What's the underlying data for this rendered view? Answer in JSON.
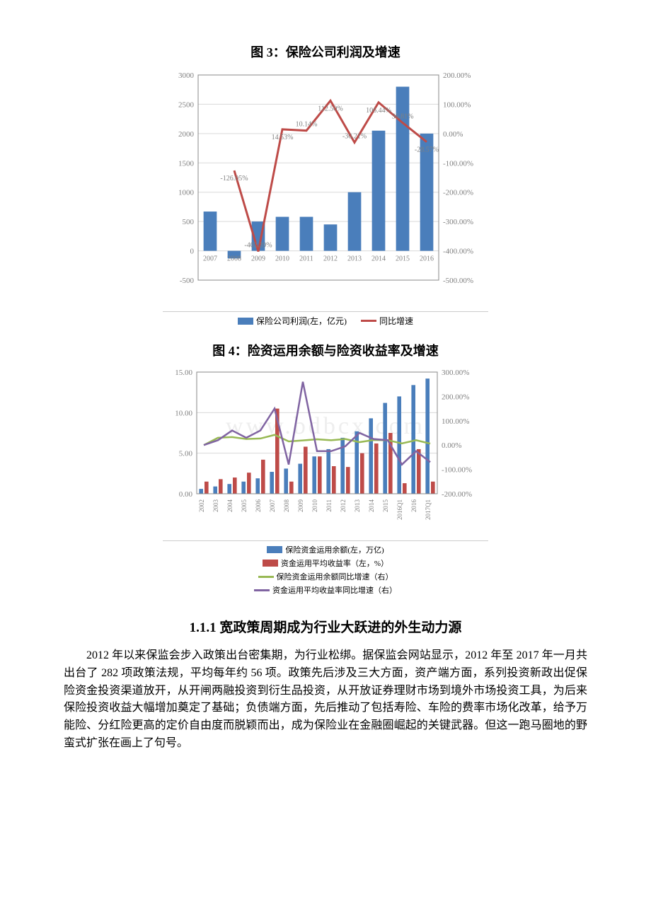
{
  "chart3": {
    "title": "图 3：保险公司利润及增速",
    "type": "bar+line",
    "x_labels": [
      "2007",
      "2008",
      "2009",
      "2010",
      "2011",
      "2012",
      "2013",
      "2014",
      "2015",
      "2016"
    ],
    "bars": [
      670,
      -130,
      500,
      580,
      580,
      450,
      1000,
      2050,
      2800,
      2000
    ],
    "line_pct": [
      null,
      -126.05,
      -402.39,
      14.53,
      10.14,
      112.5,
      -30.21,
      106.44,
      36.81,
      -28.57
    ],
    "line_label_texts": [
      "",
      "-126.05%",
      "-402.39%",
      "14.53%",
      "10.14%",
      "112.50%",
      "-30.21%",
      "106.44%",
      "36.81%",
      "-28.57%"
    ],
    "y_left": {
      "min": -500,
      "max": 3000,
      "step": 500
    },
    "y_right": {
      "min": -500,
      "max": 200,
      "step": 100,
      "suffix": ".00%"
    },
    "colors": {
      "bar": "#4a7ebb",
      "line": "#be4b48",
      "axis": "#888888",
      "grid": "#d9d9d9",
      "text": "#808080",
      "legend_text": "#808080"
    },
    "legend": {
      "bar_label": "保险公司利润(左，亿元)",
      "line_label": "同比增速"
    }
  },
  "chart4": {
    "title": "图 4：险资运用余额与险资收益率及增速",
    "type": "grouped-bar+2line",
    "x_labels": [
      "2002",
      "2003",
      "2004",
      "2005",
      "2006",
      "2007",
      "2008",
      "2009",
      "2010",
      "2011",
      "2012",
      "2013",
      "2014",
      "2015",
      "2016Q1",
      "2016",
      "2017Q1"
    ],
    "bars_blue": [
      0.6,
      0.9,
      1.2,
      1.5,
      1.9,
      2.7,
      3.1,
      3.7,
      4.6,
      5.5,
      6.9,
      7.7,
      9.3,
      11.2,
      12.0,
      13.4,
      14.2
    ],
    "bars_red": [
      1.5,
      1.8,
      2.0,
      2.6,
      4.2,
      10.5,
      1.5,
      5.8,
      4.6,
      3.4,
      3.3,
      5.0,
      6.2,
      7.5,
      1.3,
      5.5,
      1.5
    ],
    "line_green_pct": [
      0,
      30,
      33,
      25,
      27,
      42,
      15,
      19,
      24,
      20,
      25,
      12,
      21,
      20,
      7,
      20,
      6
    ],
    "line_purple_pct": [
      0,
      20,
      60,
      30,
      60,
      150,
      -80,
      260,
      -25,
      -25,
      -5,
      50,
      25,
      20,
      -80,
      -25,
      -70
    ],
    "y_left": {
      "min": 0,
      "max": 15,
      "step": 5
    },
    "y_right": {
      "min": -200,
      "max": 300,
      "step": 100,
      "suffix": ".00%"
    },
    "colors": {
      "bar_blue": "#4a7ebb",
      "bar_red": "#be4b48",
      "line_green": "#98b954",
      "line_purple": "#8064a2",
      "axis": "#888888",
      "grid": "#d9d9d9",
      "text": "#808080"
    },
    "legend": {
      "blue": "保险资金运用余额(左，万亿)",
      "red": "资金运用平均收益率（左，%）",
      "green": "保险资金运用余额同比增速（右）",
      "purple": "资金运用平均收益率同比增速（右）"
    },
    "watermark": "www.bdbcx.com"
  },
  "section": {
    "heading": "1.1.1 宽政策周期成为行业大跃进的外生动力源",
    "para": "2012 年以来保监会步入政策出台密集期，为行业松绑。据保监会网站显示，2012 年至 2017 年一月共出台了 282 项政策法规，平均每年约 56 项。政策先后涉及三大方面，资产端方面，系列投资新政出促保险资金投资渠道放开，从开闸两融投资到衍生品投资，从开放证券理财市场到境外市场投资工具，为后来保险投资收益大幅增加奠定了基础；负债端方面，先后推动了包括寿险、车险的费率市场化改革，给予万能险、分红险更高的定价自由度而脱颖而出，成为保险业在金融圈崛起的关键武器。但这一跑马圈地的野蛮式扩张在画上了句号。"
  }
}
